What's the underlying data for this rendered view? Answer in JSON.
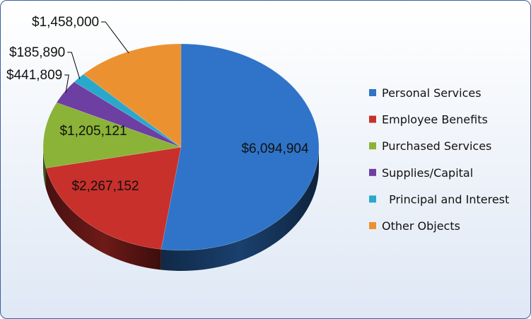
{
  "chart_data": {
    "type": "pie",
    "title": "",
    "categories": [
      "Personal Services",
      "Employee Benefits",
      "Purchased Services",
      "Supplies/Capital",
      "Principal and Interest",
      "Other Objects"
    ],
    "legend_labels": [
      "Personal Services",
      "Employee Benefits",
      "Purchased Services",
      "Supplies/Capital",
      "  Principal and Interest",
      "Other Objects"
    ],
    "values": [
      6094904,
      2267152,
      1205121,
      441809,
      185890,
      1458000
    ],
    "value_labels": [
      "$6,094,904",
      "$2,267,152",
      "$1,205,121",
      "$441,809",
      "$185,890",
      "$1,458,000"
    ],
    "colors": [
      "#2f74c8",
      "#c8302c",
      "#8ab337",
      "#6d3fa2",
      "#2aa8cc",
      "#ec9130"
    ],
    "three_d": true,
    "legend_position": "right"
  }
}
